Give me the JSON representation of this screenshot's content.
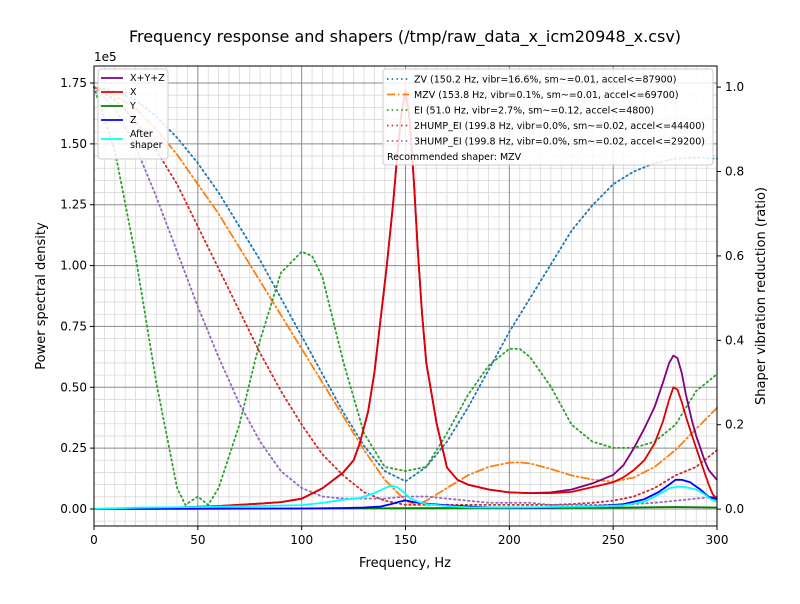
{
  "chart_data": {
    "type": "line",
    "title": "Frequency response and shapers (/tmp/raw_data_x_icm20948_x.csv)",
    "xlabel": "Frequency, Hz",
    "ylabel": "Power spectral density",
    "y2label": "Shaper vibration reduction (ratio)",
    "y_offset_label": "1e5",
    "xlim": [
      0,
      300
    ],
    "ylim": [
      -0.07,
      1.82
    ],
    "y2lim": [
      -0.04,
      1.05
    ],
    "x_ticks": [
      0,
      50,
      100,
      150,
      200,
      250,
      300
    ],
    "x_tick_labels": [
      "0",
      "50",
      "100",
      "150",
      "200",
      "250",
      "300"
    ],
    "y_ticks": [
      0,
      0.25,
      0.5,
      0.75,
      1.0,
      1.25,
      1.5,
      1.75
    ],
    "y_tick_labels": [
      "0.00",
      "0.25",
      "0.50",
      "0.75",
      "1.00",
      "1.25",
      "1.50",
      "1.75"
    ],
    "y2_ticks": [
      0,
      0.2,
      0.4,
      0.6,
      0.8,
      1.0
    ],
    "y2_tick_labels": [
      "0.0",
      "0.2",
      "0.4",
      "0.6",
      "0.8",
      "1.0"
    ],
    "grid": true,
    "psd_legend_position": "upper-left",
    "shaper_legend_position": "upper-right",
    "psd_series": [
      {
        "name": "X+Y+Z",
        "color": "#800080",
        "style": "solid",
        "x": [
          0,
          20,
          40,
          60,
          80,
          90,
          100,
          110,
          120,
          125,
          128,
          132,
          135,
          138,
          141,
          144,
          146,
          148,
          150,
          152,
          154,
          156,
          158,
          160,
          165,
          170,
          175,
          180,
          190,
          200,
          210,
          220,
          230,
          240,
          250,
          255,
          260,
          265,
          270,
          274,
          277,
          279,
          281,
          283,
          285,
          288,
          290,
          292,
          294,
          296,
          298,
          300
        ],
        "y": [
          0,
          0.003,
          0.006,
          0.012,
          0.022,
          0.028,
          0.042,
          0.085,
          0.15,
          0.2,
          0.27,
          0.4,
          0.56,
          0.78,
          1.0,
          1.25,
          1.45,
          1.62,
          1.72,
          1.6,
          1.35,
          1.05,
          0.8,
          0.6,
          0.35,
          0.17,
          0.12,
          0.1,
          0.08,
          0.068,
          0.065,
          0.068,
          0.08,
          0.105,
          0.14,
          0.18,
          0.25,
          0.33,
          0.42,
          0.52,
          0.6,
          0.63,
          0.62,
          0.56,
          0.47,
          0.36,
          0.3,
          0.25,
          0.2,
          0.16,
          0.14,
          0.12
        ]
      },
      {
        "name": "X",
        "color": "#e00000",
        "style": "solid",
        "x": [
          0,
          20,
          40,
          60,
          80,
          90,
          100,
          110,
          120,
          125,
          128,
          132,
          135,
          138,
          141,
          144,
          146,
          148,
          150,
          152,
          154,
          156,
          158,
          160,
          165,
          170,
          175,
          180,
          190,
          200,
          210,
          220,
          230,
          240,
          250,
          255,
          260,
          265,
          270,
          274,
          277,
          279,
          281,
          283,
          285,
          288,
          290,
          292,
          294,
          296,
          298,
          300
        ],
        "y": [
          0,
          0.003,
          0.006,
          0.012,
          0.022,
          0.028,
          0.042,
          0.085,
          0.15,
          0.2,
          0.27,
          0.4,
          0.56,
          0.78,
          1.0,
          1.25,
          1.45,
          1.62,
          1.72,
          1.6,
          1.35,
          1.05,
          0.8,
          0.6,
          0.35,
          0.17,
          0.12,
          0.1,
          0.08,
          0.068,
          0.065,
          0.065,
          0.07,
          0.09,
          0.11,
          0.13,
          0.16,
          0.2,
          0.27,
          0.36,
          0.45,
          0.5,
          0.49,
          0.44,
          0.38,
          0.3,
          0.25,
          0.2,
          0.15,
          0.1,
          0.06,
          0.04
        ]
      },
      {
        "name": "Y",
        "color": "#008000",
        "style": "solid",
        "x": [
          0,
          50,
          100,
          150,
          200,
          250,
          280,
          300
        ],
        "y": [
          0,
          0.001,
          0.002,
          0.003,
          0.004,
          0.005,
          0.008,
          0.006
        ]
      },
      {
        "name": "Z",
        "color": "#0000ff",
        "style": "solid",
        "x": [
          0,
          50,
          100,
          120,
          130,
          138,
          143,
          147,
          150,
          154,
          160,
          170,
          180,
          190,
          200,
          220,
          240,
          255,
          265,
          272,
          277,
          280,
          283,
          287,
          292,
          296,
          300
        ],
        "y": [
          0,
          0.001,
          0.002,
          0.004,
          0.006,
          0.01,
          0.02,
          0.03,
          0.035,
          0.028,
          0.022,
          0.015,
          0.01,
          0.007,
          0.005,
          0.006,
          0.01,
          0.02,
          0.04,
          0.07,
          0.1,
          0.12,
          0.12,
          0.11,
          0.08,
          0.05,
          0.04
        ]
      },
      {
        "name": "After\nshaper",
        "color": "#00ffff",
        "style": "solid",
        "x": [
          0,
          20,
          50,
          80,
          100,
          110,
          120,
          128,
          135,
          140,
          143,
          146,
          149,
          152,
          156,
          160,
          170,
          180,
          200,
          220,
          240,
          255,
          265,
          272,
          277,
          281,
          285,
          290,
          294,
          297,
          300
        ],
        "y": [
          0,
          0.005,
          0.008,
          0.012,
          0.016,
          0.025,
          0.038,
          0.045,
          0.065,
          0.085,
          0.095,
          0.09,
          0.07,
          0.045,
          0.03,
          0.02,
          0.012,
          0.007,
          0.006,
          0.008,
          0.01,
          0.015,
          0.03,
          0.06,
          0.085,
          0.092,
          0.09,
          0.08,
          0.06,
          0.04,
          0.03
        ]
      }
    ],
    "shaper_series": [
      {
        "name": "ZV (150.2 Hz, vibr=16.6%, sm~=0.01, accel<=87900)",
        "color": "#1f77b4",
        "style": "dotted",
        "x": [
          0,
          10,
          20,
          30,
          40,
          50,
          60,
          70,
          80,
          90,
          100,
          110,
          120,
          130,
          140,
          150,
          160,
          170,
          180,
          190,
          200,
          210,
          220,
          230,
          240,
          250,
          260,
          270,
          280,
          290,
          300
        ],
        "y": [
          1.0,
          0.99,
          0.97,
          0.93,
          0.88,
          0.82,
          0.75,
          0.67,
          0.59,
          0.5,
          0.41,
          0.32,
          0.23,
          0.15,
          0.09,
          0.066,
          0.1,
          0.16,
          0.24,
          0.33,
          0.42,
          0.5,
          0.58,
          0.66,
          0.72,
          0.77,
          0.8,
          0.82,
          0.83,
          0.833,
          0.83
        ]
      },
      {
        "name": "MZV (153.8 Hz, vibr=0.1%, sm~=0.01, accel<=69700)",
        "color": "#ff7f0e",
        "style": "dashdot",
        "x": [
          0,
          10,
          20,
          30,
          40,
          50,
          60,
          70,
          80,
          90,
          100,
          110,
          120,
          130,
          140,
          150,
          155,
          160,
          170,
          180,
          190,
          200,
          205,
          210,
          220,
          230,
          240,
          250,
          260,
          270,
          280,
          290,
          300
        ],
        "y": [
          1.0,
          0.98,
          0.95,
          0.9,
          0.84,
          0.77,
          0.7,
          0.62,
          0.54,
          0.46,
          0.38,
          0.3,
          0.22,
          0.14,
          0.07,
          0.02,
          0.01,
          0.02,
          0.05,
          0.08,
          0.1,
          0.11,
          0.111,
          0.108,
          0.095,
          0.08,
          0.07,
          0.065,
          0.075,
          0.1,
          0.14,
          0.19,
          0.24
        ]
      },
      {
        "name": "EI (51.0 Hz, vibr=2.7%, sm~=0.12, accel<=4800)",
        "color": "#2ca02c",
        "style": "dotted",
        "x": [
          0,
          10,
          20,
          30,
          40,
          44,
          50,
          55,
          60,
          70,
          80,
          90,
          100,
          105,
          110,
          120,
          130,
          140,
          150,
          160,
          170,
          180,
          190,
          200,
          205,
          210,
          220,
          230,
          240,
          250,
          260,
          270,
          280,
          290,
          300
        ],
        "y": [
          1.0,
          0.85,
          0.6,
          0.3,
          0.05,
          0.01,
          0.03,
          0.01,
          0.05,
          0.2,
          0.4,
          0.56,
          0.61,
          0.6,
          0.55,
          0.35,
          0.18,
          0.1,
          0.09,
          0.1,
          0.18,
          0.27,
          0.34,
          0.38,
          0.38,
          0.36,
          0.29,
          0.2,
          0.16,
          0.145,
          0.145,
          0.16,
          0.2,
          0.28,
          0.32
        ]
      },
      {
        "name": "2HUMP_EI (199.8 Hz, vibr=0.0%, sm~=0.02, accel<=44400)",
        "color": "#d62728",
        "style": "dotted",
        "x": [
          0,
          10,
          20,
          30,
          40,
          50,
          60,
          70,
          80,
          90,
          100,
          110,
          120,
          130,
          140,
          150,
          160,
          170,
          180,
          190,
          200,
          210,
          220,
          230,
          240,
          250,
          260,
          270,
          280,
          290,
          300
        ],
        "y": [
          1.0,
          0.97,
          0.92,
          0.85,
          0.77,
          0.67,
          0.57,
          0.47,
          0.37,
          0.28,
          0.2,
          0.13,
          0.08,
          0.04,
          0.02,
          0.01,
          0.01,
          0.01,
          0.01,
          0.01,
          0.01,
          0.01,
          0.01,
          0.012,
          0.015,
          0.02,
          0.03,
          0.05,
          0.08,
          0.1,
          0.14
        ]
      },
      {
        "name": "3HUMP_EI (199.8 Hz, vibr=0.0%, sm~=0.02, accel<=29200)",
        "color": "#9467bd",
        "style": "dotted",
        "x": [
          0,
          10,
          20,
          30,
          40,
          50,
          60,
          70,
          80,
          90,
          100,
          110,
          120,
          130,
          140,
          150,
          160,
          170,
          180,
          190,
          200,
          210,
          220,
          230,
          240,
          250,
          260,
          270,
          280,
          290,
          300
        ],
        "y": [
          1.0,
          0.95,
          0.86,
          0.74,
          0.61,
          0.48,
          0.36,
          0.25,
          0.16,
          0.09,
          0.05,
          0.03,
          0.025,
          0.025,
          0.025,
          0.03,
          0.03,
          0.025,
          0.02,
          0.015,
          0.015,
          0.015,
          0.01,
          0.01,
          0.01,
          0.01,
          0.012,
          0.015,
          0.02,
          0.025,
          0.03
        ]
      }
    ],
    "recommended_text": "Recommended shaper: MZV"
  }
}
